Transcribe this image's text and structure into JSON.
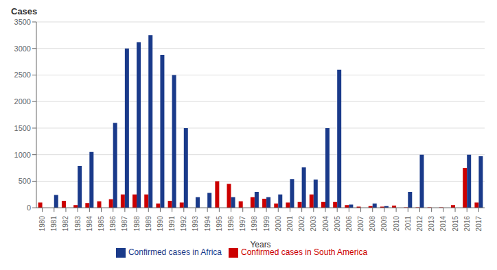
{
  "chart_data": {
    "type": "bar",
    "ylabel": "Cases",
    "xlabel": "Years",
    "categories": [
      "1980",
      "1981",
      "1982",
      "1983",
      "1984",
      "1985",
      "1986",
      "1987",
      "1988",
      "1989",
      "1990",
      "1991",
      "1992",
      "1993",
      "1994",
      "1995",
      "1996",
      "1997",
      "1998",
      "1999",
      "2000",
      "2001",
      "2002",
      "2003",
      "2004",
      "2005",
      "2006",
      "2007",
      "2008",
      "2009",
      "2010",
      "2011",
      "2012",
      "2013",
      "2014",
      "2015",
      "2016",
      "2017"
    ],
    "series": [
      {
        "name": "Confirmed cases in South America",
        "color": "#cc0000",
        "values": [
          100,
          0,
          130,
          50,
          90,
          120,
          160,
          250,
          250,
          250,
          80,
          130,
          100,
          0,
          0,
          500,
          450,
          120,
          200,
          170,
          80,
          100,
          110,
          250,
          110,
          110,
          50,
          20,
          30,
          20,
          40,
          10,
          10,
          10,
          10,
          50,
          750,
          100
        ]
      },
      {
        "name": "Confirmed cases in Africa",
        "color": "#1a3a8a",
        "values": [
          0,
          240,
          0,
          790,
          1050,
          0,
          1600,
          3000,
          3120,
          3250,
          2880,
          2500,
          1500,
          200,
          280,
          0,
          200,
          0,
          300,
          200,
          250,
          540,
          760,
          530,
          1500,
          2600,
          60,
          0,
          80,
          30,
          0,
          300,
          1000,
          0,
          0,
          0,
          1000,
          970
        ]
      }
    ],
    "ylim": [
      0,
      3500
    ],
    "yticks": [
      0,
      500,
      1000,
      1500,
      2000,
      2500,
      3000,
      3500
    ],
    "grid": true,
    "legend": "bottom"
  }
}
